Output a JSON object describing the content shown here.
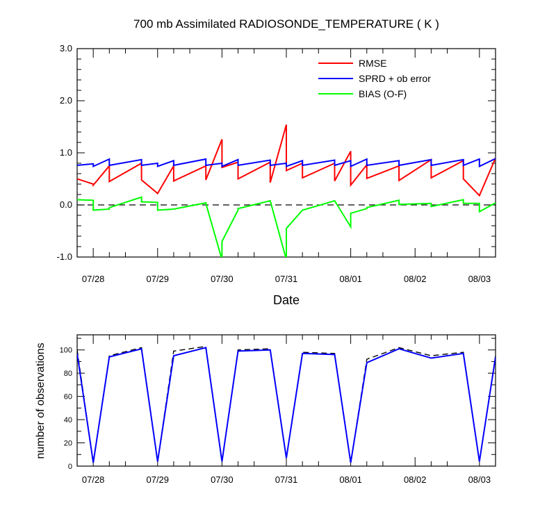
{
  "chart_data": [
    {
      "type": "line",
      "title": "700 mb Assimilated RADIOSONDE_TEMPERATURE ( K )",
      "xlabel": "Date",
      "ylabel": "",
      "xlim": [
        -0.25,
        6.25
      ],
      "ylim": [
        -1.0,
        3.0
      ],
      "xticks": [
        0.0,
        1.0,
        2.0,
        3.0,
        4.0,
        5.0,
        6.0
      ],
      "xticklabels": [
        "07/28",
        "07/29",
        "07/30",
        "07/31",
        "08/01",
        "08/02",
        "08/03"
      ],
      "xminor": [
        -0.25,
        0.25,
        0.5,
        1.25,
        1.5,
        2.25,
        2.5,
        3.25,
        3.5,
        4.25,
        4.5,
        5.25,
        5.5,
        6.25
      ],
      "yticks": [
        -1.0,
        0.0,
        1.0,
        2.0,
        3.0
      ],
      "yticklabels": [
        "-1.0",
        "0.0",
        "1.0",
        "2.0",
        "3.0"
      ],
      "zero_line": true,
      "legend_position": "top-right",
      "series": [
        {
          "name": "RMSE",
          "color": "#ff0000",
          "points": [
            [
              -0.25,
              0.5
            ],
            [
              0.0,
              0.4
            ],
            [
              0.0,
              0.38
            ],
            [
              0.25,
              0.75
            ],
            [
              0.25,
              0.45
            ],
            [
              0.75,
              0.8
            ],
            [
              0.75,
              0.48
            ],
            [
              1.0,
              0.22
            ],
            [
              1.25,
              0.75
            ],
            [
              1.25,
              0.46
            ],
            [
              1.75,
              0.75
            ],
            [
              1.75,
              0.48
            ],
            [
              2.0,
              1.26
            ],
            [
              2.0,
              0.72
            ],
            [
              2.25,
              0.82
            ],
            [
              2.25,
              0.5
            ],
            [
              2.75,
              0.82
            ],
            [
              2.75,
              0.43
            ],
            [
              3.0,
              1.54
            ],
            [
              3.0,
              0.66
            ],
            [
              3.25,
              0.8
            ],
            [
              3.25,
              0.52
            ],
            [
              3.75,
              0.8
            ],
            [
              3.75,
              0.46
            ],
            [
              4.0,
              1.03
            ],
            [
              4.0,
              0.38
            ],
            [
              4.25,
              0.77
            ],
            [
              4.25,
              0.51
            ],
            [
              4.75,
              0.75
            ],
            [
              4.75,
              0.47
            ],
            [
              5.25,
              0.87
            ],
            [
              5.25,
              0.52
            ],
            [
              5.75,
              0.85
            ],
            [
              5.75,
              0.5
            ],
            [
              6.0,
              0.18
            ],
            [
              6.25,
              0.9
            ]
          ]
        },
        {
          "name": "SPRD + ob error",
          "color": "#0000ff",
          "points": [
            [
              -0.25,
              0.76
            ],
            [
              0.0,
              0.79
            ],
            [
              0.0,
              0.74
            ],
            [
              0.25,
              0.88
            ],
            [
              0.25,
              0.76
            ],
            [
              0.75,
              0.87
            ],
            [
              0.75,
              0.76
            ],
            [
              1.0,
              0.8
            ],
            [
              1.0,
              0.74
            ],
            [
              1.25,
              0.85
            ],
            [
              1.25,
              0.76
            ],
            [
              1.75,
              0.88
            ],
            [
              1.75,
              0.76
            ],
            [
              2.0,
              0.8
            ],
            [
              2.0,
              0.74
            ],
            [
              2.25,
              0.87
            ],
            [
              2.25,
              0.76
            ],
            [
              2.75,
              0.86
            ],
            [
              2.75,
              0.76
            ],
            [
              3.0,
              0.8
            ],
            [
              3.0,
              0.74
            ],
            [
              3.25,
              0.85
            ],
            [
              3.25,
              0.76
            ],
            [
              3.75,
              0.86
            ],
            [
              3.75,
              0.76
            ],
            [
              4.0,
              0.85
            ],
            [
              4.0,
              0.74
            ],
            [
              4.25,
              0.88
            ],
            [
              4.25,
              0.76
            ],
            [
              4.75,
              0.85
            ],
            [
              4.75,
              0.76
            ],
            [
              5.25,
              0.87
            ],
            [
              5.25,
              0.76
            ],
            [
              5.75,
              0.87
            ],
            [
              5.75,
              0.76
            ],
            [
              6.0,
              0.88
            ],
            [
              6.0,
              0.74
            ],
            [
              6.25,
              0.89
            ]
          ]
        },
        {
          "name": "BIAS (O-F)",
          "color": "#00ff00",
          "points": [
            [
              -0.25,
              0.1
            ],
            [
              0.0,
              0.09
            ],
            [
              0.0,
              -0.1
            ],
            [
              0.25,
              -0.08
            ],
            [
              0.25,
              -0.05
            ],
            [
              0.75,
              0.15
            ],
            [
              0.75,
              0.06
            ],
            [
              1.0,
              0.05
            ],
            [
              1.0,
              -0.1
            ],
            [
              1.25,
              -0.08
            ],
            [
              1.75,
              0.04
            ],
            [
              1.75,
              0.03
            ],
            [
              2.0,
              -1.05
            ],
            [
              2.0,
              -0.7
            ],
            [
              2.25,
              -0.1
            ],
            [
              2.25,
              -0.07
            ],
            [
              2.75,
              0.08
            ],
            [
              3.0,
              -1.05
            ],
            [
              3.0,
              -0.45
            ],
            [
              3.25,
              -0.1
            ],
            [
              3.75,
              0.08
            ],
            [
              4.0,
              -0.42
            ],
            [
              4.0,
              -0.16
            ],
            [
              4.25,
              -0.07
            ],
            [
              4.25,
              -0.05
            ],
            [
              4.75,
              0.09
            ],
            [
              4.75,
              0.01
            ],
            [
              5.25,
              0.03
            ],
            [
              5.25,
              -0.03
            ],
            [
              5.75,
              0.1
            ],
            [
              5.75,
              0.03
            ],
            [
              6.0,
              0.03
            ],
            [
              6.0,
              -0.13
            ],
            [
              6.25,
              0.04
            ]
          ]
        }
      ]
    },
    {
      "type": "line",
      "title": "",
      "xlabel": "",
      "ylabel": "number of observations",
      "xlim": [
        -0.25,
        6.25
      ],
      "ylim": [
        0,
        113
      ],
      "xticks": [
        0.0,
        1.0,
        2.0,
        3.0,
        4.0,
        5.0,
        6.0
      ],
      "xticklabels": [
        "07/28",
        "07/29",
        "07/30",
        "07/31",
        "08/01",
        "08/02",
        "08/03"
      ],
      "xminor": [
        -0.25,
        0.25,
        0.5,
        1.25,
        1.5,
        2.25,
        2.5,
        3.25,
        3.5,
        4.25,
        4.5,
        5.25,
        5.5,
        6.25
      ],
      "yticks": [
        0,
        20,
        40,
        60,
        80,
        100
      ],
      "yticklabels": [
        "0",
        "20",
        "40",
        "60",
        "80",
        "100"
      ],
      "series": [
        {
          "color": "#000000",
          "dashed": true,
          "points": [
            [
              -0.25,
              100
            ],
            [
              0.0,
              3
            ],
            [
              0.25,
              95
            ],
            [
              0.75,
              102
            ],
            [
              1.0,
              4
            ],
            [
              1.25,
              99
            ],
            [
              1.75,
              103
            ],
            [
              2.0,
              4
            ],
            [
              2.25,
              100
            ],
            [
              2.75,
              101
            ],
            [
              3.0,
              7
            ],
            [
              3.25,
              98
            ],
            [
              3.75,
              97
            ],
            [
              4.0,
              3
            ],
            [
              4.25,
              92
            ],
            [
              4.75,
              102
            ],
            [
              5.25,
              95
            ],
            [
              5.75,
              98
            ],
            [
              6.0,
              4
            ],
            [
              6.25,
              95
            ]
          ]
        },
        {
          "color": "#0000ff",
          "dashed": false,
          "points": [
            [
              -0.25,
              97
            ],
            [
              0.0,
              3
            ],
            [
              0.25,
              94
            ],
            [
              0.75,
              101
            ],
            [
              1.0,
              4
            ],
            [
              1.25,
              95
            ],
            [
              1.75,
              102
            ],
            [
              2.0,
              4
            ],
            [
              2.25,
              99
            ],
            [
              2.75,
              100
            ],
            [
              3.0,
              7
            ],
            [
              3.25,
              97
            ],
            [
              3.75,
              96
            ],
            [
              4.0,
              3
            ],
            [
              4.25,
              89
            ],
            [
              4.75,
              101
            ],
            [
              5.25,
              93
            ],
            [
              5.75,
              97
            ],
            [
              6.0,
              4
            ],
            [
              6.25,
              94
            ]
          ]
        }
      ]
    }
  ]
}
